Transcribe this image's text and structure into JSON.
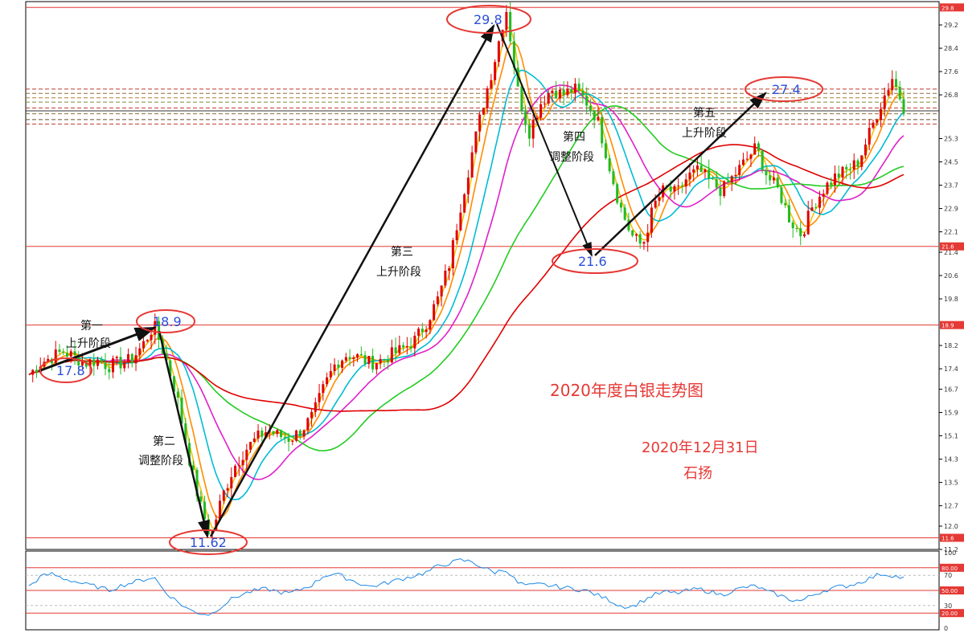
{
  "chart_data": {
    "type": "candlestick",
    "title": "2020年度白银走势图",
    "subtitle": "2020年12月31日",
    "author": "石扬",
    "price_axis": {
      "ylim": [
        11.2,
        30.0
      ],
      "ticks": [
        "29.2",
        "28.4",
        "27.6",
        "26.8",
        "25.3",
        "24.5",
        "23.7",
        "22.9",
        "22.1",
        "21.4",
        "20.6",
        "19.8",
        "18.2",
        "17.4",
        "16.7",
        "15.9",
        "15.1",
        "14.3",
        "13.5",
        "12.7",
        "12.0",
        "11.2"
      ],
      "tagged_lines": [
        "29.8",
        "21.6",
        "18.9",
        "11.6"
      ]
    },
    "horizontal_lines": [
      29.8,
      21.6,
      18.9,
      11.6
    ],
    "price_points": [
      {
        "label": "17.8",
        "value": 17.8
      },
      {
        "label": "18.9",
        "value": 18.9
      },
      {
        "label": "11.62",
        "value": 11.62
      },
      {
        "label": "29.8",
        "value": 29.8
      },
      {
        "label": "21.6",
        "value": 21.6
      },
      {
        "label": "27.4",
        "value": 27.4
      }
    ],
    "stages": [
      {
        "line1": "第一",
        "line2": "上升阶段"
      },
      {
        "line1": "第二",
        "line2": "调整阶段"
      },
      {
        "line1": "第三",
        "line2": "上升阶段"
      },
      {
        "line1": "第四",
        "line2": "调整阶段"
      },
      {
        "line1": "第五",
        "line2": "上升阶段"
      }
    ],
    "close_path": [
      17.2,
      17.6,
      17.8,
      18.0,
      17.8,
      17.6,
      17.7,
      17.5,
      17.6,
      17.7,
      18.2,
      18.9,
      17.8,
      16.5,
      14.5,
      12.8,
      11.62,
      13.0,
      14.0,
      14.6,
      15.0,
      15.3,
      15.1,
      15.0,
      15.3,
      15.8,
      16.8,
      17.6,
      17.9,
      17.8,
      17.6,
      17.7,
      17.9,
      18.1,
      18.4,
      19.0,
      19.8,
      21.0,
      23.0,
      24.8,
      26.5,
      28.0,
      29.8,
      27.0,
      25.5,
      26.5,
      27.0,
      26.8,
      27.0,
      26.6,
      26.0,
      24.5,
      23.0,
      22.0,
      21.6,
      23.0,
      23.6,
      23.4,
      24.0,
      24.2,
      23.8,
      23.5,
      24.0,
      24.5,
      25.0,
      24.0,
      23.5,
      22.5,
      22.0,
      23.0,
      23.6,
      24.0,
      24.2,
      24.5,
      25.5,
      26.5,
      27.4,
      26.4
    ],
    "rsi": {
      "ylim": [
        0,
        100
      ],
      "ticks": [
        "100",
        "70",
        "30",
        "0"
      ],
      "levels": [
        "80.00",
        "50.00",
        "20.00"
      ],
      "values": [
        55,
        68,
        72,
        66,
        62,
        58,
        55,
        50,
        56,
        60,
        64,
        68,
        48,
        36,
        25,
        20,
        18,
        30,
        40,
        46,
        50,
        52,
        48,
        46,
        52,
        58,
        70,
        72,
        66,
        60,
        55,
        58,
        62,
        66,
        70,
        74,
        82,
        86,
        90,
        88,
        80,
        74,
        78,
        60,
        56,
        58,
        56,
        54,
        52,
        50,
        44,
        38,
        30,
        28,
        36,
        44,
        48,
        46,
        50,
        52,
        48,
        44,
        50,
        54,
        56,
        48,
        44,
        38,
        36,
        44,
        50,
        54,
        56,
        60,
        66,
        72,
        70,
        66
      ]
    }
  }
}
